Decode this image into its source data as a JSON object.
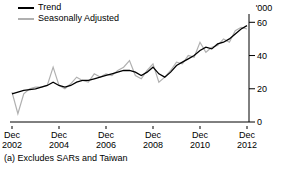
{
  "chart_data": {
    "type": "line",
    "ylabel": "'000",
    "footnote": "(a) Excludes SARs and Taiwan",
    "categories": [
      "Dec 2002",
      null,
      null,
      null,
      null,
      null,
      null,
      null,
      "Dec 2004",
      null,
      null,
      null,
      null,
      null,
      null,
      null,
      "Dec 2006",
      null,
      null,
      null,
      null,
      null,
      null,
      null,
      "Dec 2008",
      null,
      null,
      null,
      null,
      null,
      null,
      null,
      "Dec 2010",
      null,
      null,
      null,
      null,
      null,
      null,
      null,
      "Dec 2012"
    ],
    "series": [
      {
        "name": "Trend",
        "color": "#000000",
        "values": [
          17,
          18,
          19,
          19.5,
          20,
          21,
          22,
          24,
          22,
          21,
          22,
          24,
          25,
          25,
          26,
          27,
          28,
          29,
          30,
          31,
          31,
          30,
          28,
          30,
          33,
          29,
          27,
          30,
          34,
          36,
          38,
          40,
          43,
          45,
          44,
          47,
          48,
          50,
          53,
          56,
          58
        ]
      },
      {
        "name": "Seasonally Adjusted",
        "color": "#b0b0b0",
        "values": [
          18,
          5,
          17,
          20,
          21,
          21,
          22,
          33,
          22,
          20,
          23,
          27,
          25,
          24,
          29,
          27,
          29,
          28,
          31,
          33,
          37,
          28,
          26,
          31,
          35,
          24,
          27,
          31,
          36,
          35,
          40,
          39,
          48,
          42,
          45,
          46,
          50,
          48,
          55,
          57,
          56
        ]
      }
    ],
    "ylim": [
      0,
      65
    ],
    "yticks": [
      0,
      20,
      40,
      60
    ],
    "grid": false,
    "legend": "top-left"
  }
}
